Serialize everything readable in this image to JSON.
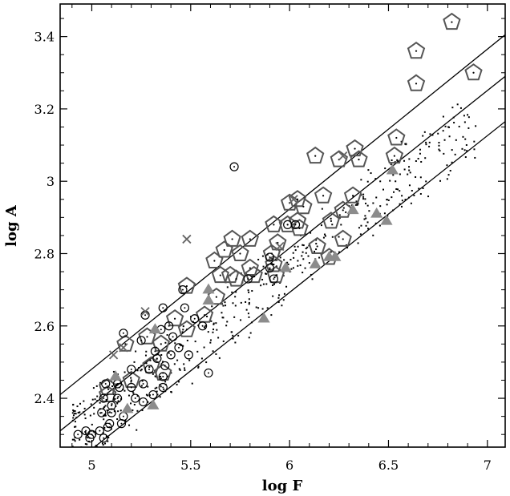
{
  "chart_data": {
    "type": "scatter",
    "title": "",
    "xlabel": "log F",
    "ylabel": "log A",
    "xlim": [
      4.84,
      7.09
    ],
    "ylim": [
      2.265,
      3.49
    ],
    "xticks": [
      "5",
      "5.5",
      "6",
      "6.5",
      "7"
    ],
    "yticks": [
      "2.4",
      "2.6",
      "2.8",
      "3",
      "3.2",
      "3.4"
    ],
    "grid": false,
    "lines": [
      {
        "x": [
          4.84,
          7.09
        ],
        "y": [
          2.41,
          3.405
        ]
      },
      {
        "x": [
          4.84,
          7.09
        ],
        "y": [
          2.31,
          3.29
        ]
      },
      {
        "x": [
          4.84,
          7.09
        ],
        "y": [
          2.19,
          3.165
        ]
      }
    ],
    "series": [
      {
        "marker": "pentagon",
        "color": "#555555",
        "points": [
          [
            6.82,
            3.44
          ],
          [
            6.64,
            3.36
          ],
          [
            6.64,
            3.27
          ],
          [
            6.93,
            3.3
          ],
          [
            6.54,
            3.12
          ],
          [
            6.53,
            3.07
          ],
          [
            6.33,
            3.09
          ],
          [
            6.35,
            3.06
          ],
          [
            6.25,
            3.06
          ],
          [
            6.13,
            3.07
          ],
          [
            6.32,
            2.96
          ],
          [
            6.17,
            2.96
          ],
          [
            6.0,
            2.94
          ],
          [
            6.04,
            2.95
          ],
          [
            6.07,
            2.93
          ],
          [
            6.21,
            2.89
          ],
          [
            6.27,
            2.92
          ],
          [
            6.04,
            2.89
          ],
          [
            5.99,
            2.88
          ],
          [
            5.92,
            2.88
          ],
          [
            6.05,
            2.87
          ],
          [
            5.94,
            2.83
          ],
          [
            5.8,
            2.84
          ],
          [
            5.71,
            2.84
          ],
          [
            5.67,
            2.81
          ],
          [
            5.75,
            2.8
          ],
          [
            5.62,
            2.78
          ],
          [
            5.91,
            2.8
          ],
          [
            6.14,
            2.82
          ],
          [
            6.27,
            2.84
          ],
          [
            6.2,
            2.79
          ],
          [
            5.92,
            2.77
          ],
          [
            5.82,
            2.74
          ],
          [
            5.7,
            2.74
          ],
          [
            5.73,
            2.73
          ],
          [
            5.65,
            2.74
          ],
          [
            5.93,
            2.74
          ],
          [
            5.8,
            2.76
          ],
          [
            5.48,
            2.71
          ],
          [
            5.63,
            2.68
          ],
          [
            5.57,
            2.63
          ],
          [
            5.42,
            2.62
          ],
          [
            5.48,
            2.59
          ],
          [
            5.28,
            2.57
          ],
          [
            5.35,
            2.55
          ],
          [
            5.17,
            2.55
          ],
          [
            5.3,
            2.49
          ],
          [
            5.36,
            2.47
          ],
          [
            5.2,
            2.45
          ],
          [
            5.08,
            2.43
          ],
          [
            5.08,
            2.41
          ]
        ]
      },
      {
        "marker": "circle",
        "color": "#000000",
        "points": [
          [
            5.72,
            3.04
          ],
          [
            5.99,
            2.88
          ],
          [
            6.03,
            2.88
          ],
          [
            5.9,
            2.79
          ],
          [
            5.92,
            2.73
          ],
          [
            5.79,
            2.73
          ],
          [
            5.9,
            2.76
          ],
          [
            5.46,
            2.7
          ],
          [
            5.47,
            2.65
          ],
          [
            5.36,
            2.65
          ],
          [
            5.56,
            2.6
          ],
          [
            5.52,
            2.62
          ],
          [
            5.27,
            2.63
          ],
          [
            5.39,
            2.6
          ],
          [
            5.35,
            2.59
          ],
          [
            5.41,
            2.57
          ],
          [
            5.16,
            2.58
          ],
          [
            5.25,
            2.56
          ],
          [
            5.44,
            2.54
          ],
          [
            5.4,
            2.52
          ],
          [
            5.33,
            2.51
          ],
          [
            5.32,
            2.53
          ],
          [
            5.49,
            2.52
          ],
          [
            5.37,
            2.49
          ],
          [
            5.29,
            2.48
          ],
          [
            5.2,
            2.48
          ],
          [
            5.59,
            2.47
          ],
          [
            5.36,
            2.46
          ],
          [
            5.26,
            2.44
          ],
          [
            5.36,
            2.43
          ],
          [
            5.13,
            2.44
          ],
          [
            5.07,
            2.44
          ],
          [
            5.14,
            2.43
          ],
          [
            5.2,
            2.43
          ],
          [
            5.31,
            2.41
          ],
          [
            5.22,
            2.4
          ],
          [
            5.06,
            2.4
          ],
          [
            5.13,
            2.4
          ],
          [
            5.26,
            2.39
          ],
          [
            5.1,
            2.38
          ],
          [
            5.1,
            2.36
          ],
          [
            5.05,
            2.36
          ],
          [
            5.16,
            2.35
          ],
          [
            5.09,
            2.33
          ],
          [
            5.15,
            2.33
          ],
          [
            5.08,
            2.32
          ],
          [
            4.97,
            2.31
          ],
          [
            5.04,
            2.31
          ],
          [
            5.0,
            2.3
          ],
          [
            4.93,
            2.3
          ],
          [
            4.99,
            2.29
          ],
          [
            5.06,
            2.29
          ]
        ]
      },
      {
        "marker": "triangle",
        "color": "#8c8c8c",
        "points": [
          [
            6.52,
            3.03
          ],
          [
            6.32,
            2.92
          ],
          [
            6.44,
            2.91
          ],
          [
            6.49,
            2.89
          ],
          [
            6.2,
            2.79
          ],
          [
            6.23,
            2.79
          ],
          [
            6.13,
            2.77
          ],
          [
            5.98,
            2.76
          ],
          [
            5.59,
            2.7
          ],
          [
            5.59,
            2.67
          ],
          [
            5.87,
            2.62
          ],
          [
            5.32,
            2.59
          ],
          [
            5.12,
            2.46
          ],
          [
            5.18,
            2.37
          ],
          [
            5.31,
            2.38
          ]
        ]
      },
      {
        "marker": "cross",
        "color": "#666666",
        "points": [
          [
            6.27,
            3.07
          ],
          [
            6.02,
            2.95
          ],
          [
            5.48,
            2.84
          ],
          [
            5.95,
            2.82
          ],
          [
            5.27,
            2.64
          ],
          [
            5.16,
            2.54
          ],
          [
            5.11,
            2.52
          ]
        ]
      }
    ]
  }
}
